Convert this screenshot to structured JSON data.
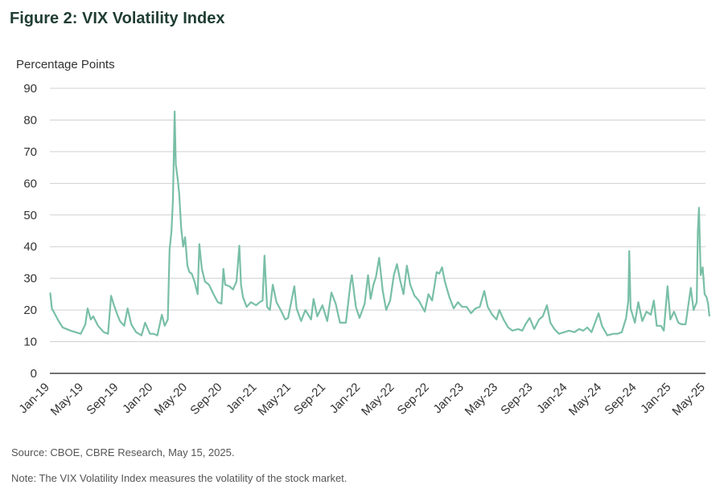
{
  "figure": {
    "title": "Figure 2: VIX Volatility Index",
    "source": "Source: CBOE, CBRE Research, May 15, 2025.",
    "note": "Note: The VIX Volatility Index measures the volatility of the stock market."
  },
  "colors": {
    "line": "#79bfa6",
    "grid": "#d0d0d0",
    "axis": "#444444",
    "title": "#1f3d33"
  },
  "chart_data": {
    "type": "line",
    "ylabel": "Percentage Points",
    "xlabel": "",
    "ylim": [
      0,
      90
    ],
    "yticks": [
      0,
      10,
      20,
      30,
      40,
      50,
      60,
      70,
      80,
      90
    ],
    "grid": true,
    "xticks": [
      "Jan-19",
      "May-19",
      "Sep-19",
      "Jan-20",
      "May-20",
      "Sep-20",
      "Jan-21",
      "May-21",
      "Sep-21",
      "Jan-22",
      "May-22",
      "Sep-22",
      "Jan-23",
      "May-23",
      "Sep-23",
      "Jan-24",
      "May-24",
      "Sep-24",
      "Jan-25",
      "May-25"
    ],
    "series": [
      {
        "points": [
          [
            "2019-01-02",
            25.5
          ],
          [
            "2019-01-08",
            20.5
          ],
          [
            "2019-01-20",
            18.5
          ],
          [
            "2019-02-01",
            16.5
          ],
          [
            "2019-02-15",
            14.5
          ],
          [
            "2019-03-01",
            14.0
          ],
          [
            "2019-03-15",
            13.5
          ],
          [
            "2019-04-01",
            13.0
          ],
          [
            "2019-04-20",
            12.5
          ],
          [
            "2019-05-06",
            15.5
          ],
          [
            "2019-05-14",
            20.5
          ],
          [
            "2019-05-25",
            17.0
          ],
          [
            "2019-06-03",
            18.0
          ],
          [
            "2019-06-20",
            15.0
          ],
          [
            "2019-07-10",
            13.0
          ],
          [
            "2019-07-25",
            12.5
          ],
          [
            "2019-08-05",
            24.5
          ],
          [
            "2019-08-15",
            21.5
          ],
          [
            "2019-08-25",
            19.0
          ],
          [
            "2019-09-05",
            16.5
          ],
          [
            "2019-09-20",
            15.0
          ],
          [
            "2019-10-02",
            20.5
          ],
          [
            "2019-10-15",
            15.5
          ],
          [
            "2019-11-01",
            13.0
          ],
          [
            "2019-11-20",
            12.0
          ],
          [
            "2019-12-03",
            16.0
          ],
          [
            "2019-12-20",
            12.5
          ],
          [
            "2020-01-02",
            12.5
          ],
          [
            "2020-01-15",
            12.0
          ],
          [
            "2020-01-31",
            18.5
          ],
          [
            "2020-02-10",
            15.0
          ],
          [
            "2020-02-21",
            17.0
          ],
          [
            "2020-02-27",
            39.0
          ],
          [
            "2020-03-05",
            45.0
          ],
          [
            "2020-03-10",
            55.0
          ],
          [
            "2020-03-16",
            82.7
          ],
          [
            "2020-03-20",
            66.0
          ],
          [
            "2020-03-26",
            62.0
          ],
          [
            "2020-04-01",
            57.0
          ],
          [
            "2020-04-08",
            46.0
          ],
          [
            "2020-04-15",
            40.0
          ],
          [
            "2020-04-22",
            43.0
          ],
          [
            "2020-04-30",
            34.0
          ],
          [
            "2020-05-07",
            32.0
          ],
          [
            "2020-05-15",
            31.5
          ],
          [
            "2020-05-25",
            29.0
          ],
          [
            "2020-06-05",
            25.0
          ],
          [
            "2020-06-11",
            40.8
          ],
          [
            "2020-06-20",
            33.0
          ],
          [
            "2020-07-01",
            29.0
          ],
          [
            "2020-07-15",
            28.0
          ],
          [
            "2020-07-31",
            25.0
          ],
          [
            "2020-08-15",
            22.5
          ],
          [
            "2020-08-28",
            22.0
          ],
          [
            "2020-09-04",
            33.0
          ],
          [
            "2020-09-10",
            28.0
          ],
          [
            "2020-09-25",
            27.5
          ],
          [
            "2020-10-08",
            26.5
          ],
          [
            "2020-10-20",
            29.0
          ],
          [
            "2020-10-30",
            40.3
          ],
          [
            "2020-11-05",
            28.0
          ],
          [
            "2020-11-12",
            24.0
          ],
          [
            "2020-11-25",
            21.0
          ],
          [
            "2020-12-10",
            22.5
          ],
          [
            "2020-12-28",
            21.5
          ],
          [
            "2021-01-10",
            22.5
          ],
          [
            "2021-01-20",
            23.0
          ],
          [
            "2021-01-27",
            37.2
          ],
          [
            "2021-02-05",
            21.0
          ],
          [
            "2021-02-15",
            20.0
          ],
          [
            "2021-02-25",
            28.0
          ],
          [
            "2021-03-10",
            22.5
          ],
          [
            "2021-03-25",
            20.0
          ],
          [
            "2021-04-10",
            17.0
          ],
          [
            "2021-04-20",
            17.5
          ],
          [
            "2021-05-12",
            27.5
          ],
          [
            "2021-05-20",
            20.5
          ],
          [
            "2021-06-05",
            16.5
          ],
          [
            "2021-06-20",
            20.0
          ],
          [
            "2021-07-10",
            17.0
          ],
          [
            "2021-07-19",
            23.5
          ],
          [
            "2021-08-01",
            18.0
          ],
          [
            "2021-08-19",
            21.5
          ],
          [
            "2021-09-05",
            16.5
          ],
          [
            "2021-09-20",
            25.5
          ],
          [
            "2021-10-05",
            22.0
          ],
          [
            "2021-10-20",
            16.0
          ],
          [
            "2021-11-10",
            16.0
          ],
          [
            "2021-11-26",
            28.5
          ],
          [
            "2021-12-01",
            31.0
          ],
          [
            "2021-12-15",
            21.0
          ],
          [
            "2021-12-28",
            17.5
          ],
          [
            "2022-01-05",
            19.5
          ],
          [
            "2022-01-15",
            22.0
          ],
          [
            "2022-01-27",
            31.0
          ],
          [
            "2022-02-05",
            23.5
          ],
          [
            "2022-02-15",
            28.0
          ],
          [
            "2022-02-24",
            30.5
          ],
          [
            "2022-03-07",
            36.5
          ],
          [
            "2022-03-20",
            26.0
          ],
          [
            "2022-04-01",
            20.0
          ],
          [
            "2022-04-15",
            23.0
          ],
          [
            "2022-04-28",
            31.0
          ],
          [
            "2022-05-09",
            34.5
          ],
          [
            "2022-05-20",
            29.5
          ],
          [
            "2022-06-01",
            25.0
          ],
          [
            "2022-06-13",
            34.0
          ],
          [
            "2022-06-25",
            28.0
          ],
          [
            "2022-07-10",
            24.5
          ],
          [
            "2022-07-25",
            23.0
          ],
          [
            "2022-08-15",
            19.5
          ],
          [
            "2022-08-28",
            25.0
          ],
          [
            "2022-09-10",
            23.0
          ],
          [
            "2022-09-26",
            32.0
          ],
          [
            "2022-10-05",
            31.5
          ],
          [
            "2022-10-15",
            33.5
          ],
          [
            "2022-10-25",
            29.0
          ],
          [
            "2022-11-10",
            24.0
          ],
          [
            "2022-11-25",
            20.5
          ],
          [
            "2022-12-10",
            22.5
          ],
          [
            "2022-12-25",
            21.0
          ],
          [
            "2023-01-10",
            21.0
          ],
          [
            "2023-01-25",
            19.0
          ],
          [
            "2023-02-10",
            20.5
          ],
          [
            "2023-02-25",
            21.0
          ],
          [
            "2023-03-13",
            26.0
          ],
          [
            "2023-03-25",
            21.0
          ],
          [
            "2023-04-10",
            18.5
          ],
          [
            "2023-04-25",
            17.0
          ],
          [
            "2023-05-05",
            20.0
          ],
          [
            "2023-05-20",
            17.0
          ],
          [
            "2023-06-05",
            14.5
          ],
          [
            "2023-06-20",
            13.5
          ],
          [
            "2023-07-10",
            14.0
          ],
          [
            "2023-07-25",
            13.5
          ],
          [
            "2023-08-05",
            15.5
          ],
          [
            "2023-08-20",
            17.5
          ],
          [
            "2023-09-05",
            14.0
          ],
          [
            "2023-09-22",
            17.0
          ],
          [
            "2023-10-05",
            18.0
          ],
          [
            "2023-10-20",
            21.5
          ],
          [
            "2023-11-01",
            16.0
          ],
          [
            "2023-11-15",
            14.0
          ],
          [
            "2023-12-01",
            12.5
          ],
          [
            "2023-12-20",
            13.0
          ],
          [
            "2024-01-05",
            13.5
          ],
          [
            "2024-01-25",
            13.0
          ],
          [
            "2024-02-10",
            14.0
          ],
          [
            "2024-02-25",
            13.5
          ],
          [
            "2024-03-10",
            14.5
          ],
          [
            "2024-03-25",
            13.0
          ],
          [
            "2024-04-19",
            19.0
          ],
          [
            "2024-05-01",
            15.0
          ],
          [
            "2024-05-20",
            12.0
          ],
          [
            "2024-06-10",
            12.5
          ],
          [
            "2024-06-25",
            12.5
          ],
          [
            "2024-07-10",
            13.0
          ],
          [
            "2024-07-25",
            17.5
          ],
          [
            "2024-08-02",
            23.0
          ],
          [
            "2024-08-05",
            38.6
          ],
          [
            "2024-08-10",
            20.5
          ],
          [
            "2024-08-25",
            16.0
          ],
          [
            "2024-09-06",
            22.5
          ],
          [
            "2024-09-20",
            16.5
          ],
          [
            "2024-10-05",
            19.5
          ],
          [
            "2024-10-20",
            18.5
          ],
          [
            "2024-10-31",
            23.0
          ],
          [
            "2024-11-10",
            15.0
          ],
          [
            "2024-11-25",
            15.0
          ],
          [
            "2024-12-05",
            13.5
          ],
          [
            "2024-12-18",
            27.5
          ],
          [
            "2024-12-28",
            17.0
          ],
          [
            "2025-01-10",
            19.5
          ],
          [
            "2025-01-25",
            16.0
          ],
          [
            "2025-02-05",
            15.5
          ],
          [
            "2025-02-20",
            15.5
          ],
          [
            "2025-03-10",
            27.0
          ],
          [
            "2025-03-20",
            20.0
          ],
          [
            "2025-03-31",
            22.5
          ],
          [
            "2025-04-04",
            45.0
          ],
          [
            "2025-04-08",
            52.3
          ],
          [
            "2025-04-14",
            31.0
          ],
          [
            "2025-04-21",
            33.5
          ],
          [
            "2025-04-28",
            25.0
          ],
          [
            "2025-05-05",
            24.0
          ],
          [
            "2025-05-10",
            22.0
          ],
          [
            "2025-05-15",
            18.0
          ]
        ]
      }
    ]
  }
}
